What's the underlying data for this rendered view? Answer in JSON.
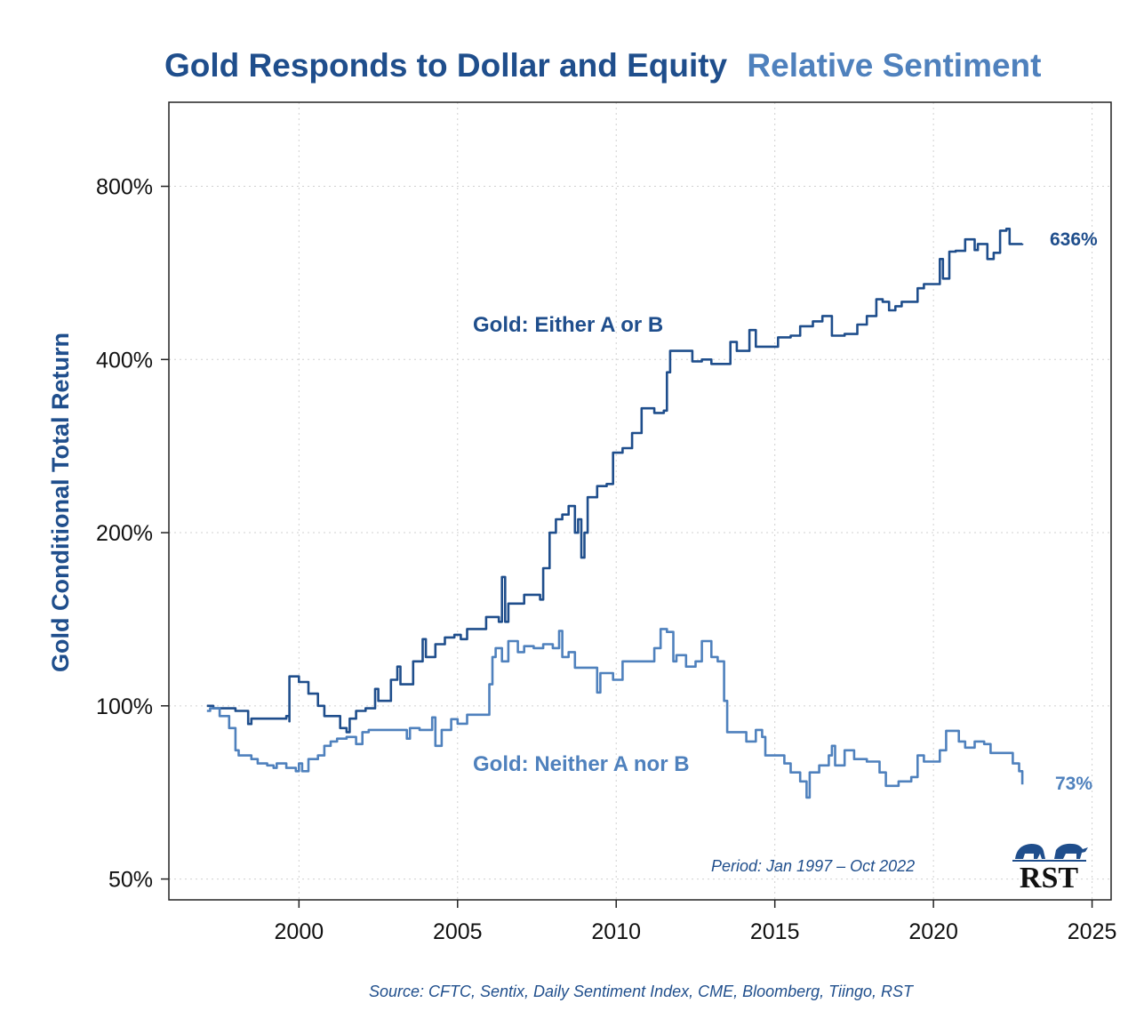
{
  "chart_data": {
    "type": "line",
    "title": "Gold Responds to Dollar and Equity",
    "title_suffix": "Relative Sentiment",
    "xlabel": "",
    "ylabel": "Gold Conditional Total Return",
    "y_scale": "log",
    "xlim": [
      1995.9,
      2025.6
    ],
    "ylim": [
      46,
      1120
    ],
    "x_ticks": [
      2000,
      2005,
      2010,
      2015,
      2020,
      2025
    ],
    "x_tick_labels": [
      "2000",
      "2005",
      "2010",
      "2015",
      "2020",
      "2025"
    ],
    "y_ticks": [
      50,
      100,
      200,
      400,
      800
    ],
    "y_tick_labels": [
      "50%",
      "100%",
      "200%",
      "400%",
      "800%"
    ],
    "grid": true,
    "colors": {
      "dark": "#1f4e8c",
      "light": "#4f81bd",
      "title_dark": "#1f4e8c",
      "title_light": "#4f81bd"
    },
    "series": [
      {
        "name": "Gold: Either A or B",
        "color": "#1f4e8c",
        "end_label": "636%",
        "x": [
          1997.1,
          1997.3,
          1998.0,
          1998.4,
          1998.5,
          1999.6,
          1999.7,
          1999.7,
          2000.0,
          2000.3,
          2000.6,
          2000.8,
          2001.3,
          2001.5,
          2001.6,
          2001.8,
          2002.1,
          2002.4,
          2002.5,
          2002.9,
          2003.1,
          2003.2,
          2003.6,
          2003.9,
          2004.0,
          2004.3,
          2004.6,
          2004.9,
          2005.1,
          2005.3,
          2005.9,
          2006.3,
          2006.4,
          2006.5,
          2006.6,
          2007.1,
          2007.6,
          2007.7,
          2007.9,
          2008.1,
          2008.3,
          2008.5,
          2008.7,
          2008.8,
          2008.9,
          2009.0,
          2009.1,
          2009.4,
          2009.7,
          2009.9,
          2010.2,
          2010.5,
          2010.8,
          2011.2,
          2011.5,
          2011.6,
          2011.7,
          2012.2,
          2012.4,
          2012.7,
          2013.0,
          2013.4,
          2013.6,
          2013.8,
          2014.2,
          2014.4,
          2015.0,
          2015.1,
          2015.5,
          2015.8,
          2016.2,
          2016.5,
          2016.8,
          2017.2,
          2017.6,
          2017.9,
          2018.2,
          2018.4,
          2018.6,
          2018.8,
          2019.0,
          2019.5,
          2019.7,
          2020.0,
          2020.2,
          2020.3,
          2020.5,
          2020.7,
          2021.0,
          2021.3,
          2021.4,
          2021.7,
          2021.9,
          2022.1,
          2022.3,
          2022.4,
          2022.8
        ],
        "y": [
          100,
          99,
          98,
          93,
          95,
          96,
          94,
          112.5,
          110,
          105,
          100,
          96,
          91.5,
          90,
          95,
          98,
          99,
          107,
          102,
          111,
          117,
          109,
          119.5,
          130.6,
          121.6,
          128,
          131.5,
          132.9,
          130.6,
          136,
          142.7,
          140,
          167.5,
          140,
          150.6,
          156,
          153,
          173.5,
          200,
          211,
          215,
          222.5,
          200,
          211,
          181,
          200,
          230.5,
          241,
          243,
          275.5,
          280.5,
          298,
          329,
          323,
          326,
          380,
          414,
          414,
          397,
          400,
          393,
          393,
          429,
          414,
          450,
          421,
          421,
          437,
          440,
          457,
          466,
          476,
          440,
          443,
          460,
          476,
          509,
          504,
          487,
          495,
          504,
          532,
          541,
          541,
          598,
          553,
          616,
          618,
          647,
          620,
          635,
          598,
          613,
          670,
          675,
          635,
          636
        ]
      },
      {
        "name": "Gold: Neither A nor B",
        "color": "#4f81bd",
        "end_label": "73%",
        "x": [
          1997.1,
          1997.2,
          1997.5,
          1997.8,
          1998.0,
          1998.1,
          1998.5,
          1998.7,
          1999.0,
          1999.2,
          1999.3,
          1999.6,
          1999.9,
          2000.0,
          2000.1,
          2000.3,
          2000.6,
          2000.8,
          2001.0,
          2001.2,
          2001.5,
          2001.8,
          2002.0,
          2002.2,
          2003.2,
          2003.4,
          2003.5,
          2003.8,
          2004.2,
          2004.3,
          2004.5,
          2004.8,
          2005.0,
          2005.3,
          2005.9,
          2006.0,
          2006.1,
          2006.2,
          2006.4,
          2006.6,
          2006.9,
          2007.1,
          2007.4,
          2007.7,
          2008.0,
          2008.2,
          2008.3,
          2008.5,
          2008.7,
          2009.2,
          2009.4,
          2009.5,
          2009.9,
          2010.2,
          2010.8,
          2011.2,
          2011.4,
          2011.6,
          2011.8,
          2011.9,
          2012.2,
          2012.5,
          2012.7,
          2013.0,
          2013.2,
          2013.4,
          2013.5,
          2013.9,
          2014.1,
          2014.4,
          2014.6,
          2014.7,
          2015.0,
          2015.3,
          2015.5,
          2015.8,
          2016.0,
          2016.1,
          2016.4,
          2016.7,
          2016.8,
          2016.9,
          2017.2,
          2017.5,
          2017.9,
          2018.3,
          2018.5,
          2018.9,
          2019.3,
          2019.5,
          2019.7,
          2020.2,
          2020.4,
          2020.7,
          2020.8,
          2021.0,
          2021.3,
          2021.6,
          2021.8,
          2022.4,
          2022.5,
          2022.7,
          2022.8
        ],
        "y": [
          98,
          99,
          96,
          91.5,
          83.7,
          82,
          80.8,
          79.4,
          78.8,
          78,
          79.4,
          78,
          77,
          79.4,
          77,
          80.8,
          82,
          85.2,
          86.7,
          87.7,
          88.3,
          85.8,
          90,
          90.8,
          90.8,
          87.7,
          91.5,
          90.8,
          95.5,
          85.2,
          90.8,
          94.8,
          93.1,
          96.5,
          96.5,
          109,
          121.6,
          126,
          119.5,
          129.6,
          124,
          127,
          126,
          128,
          126,
          135,
          121.6,
          124,
          116.5,
          116.5,
          105.5,
          114,
          111,
          119.5,
          119.5,
          126,
          136,
          134.4,
          119.5,
          122.5,
          117,
          119.5,
          129.6,
          121.6,
          119.5,
          102,
          90,
          90,
          86.7,
          90.8,
          88.3,
          82,
          82,
          79.4,
          76.6,
          73.9,
          69.3,
          76.6,
          78.8,
          82,
          85.2,
          78.8,
          83.7,
          80.8,
          80,
          76.6,
          72.6,
          73.9,
          75.2,
          82,
          80,
          83.7,
          90.5,
          90.5,
          86.7,
          84.6,
          86.7,
          85.8,
          82.8,
          82.8,
          79.4,
          77,
          73
        ]
      }
    ],
    "annotations": {
      "period": "Period: Jan 1997 – Oct 2022",
      "source": "Source: CFTC, Sentix, Daily Sentiment Index, CME, Bloomberg, Tiingo, RST"
    },
    "logo": {
      "text": "RST"
    }
  }
}
